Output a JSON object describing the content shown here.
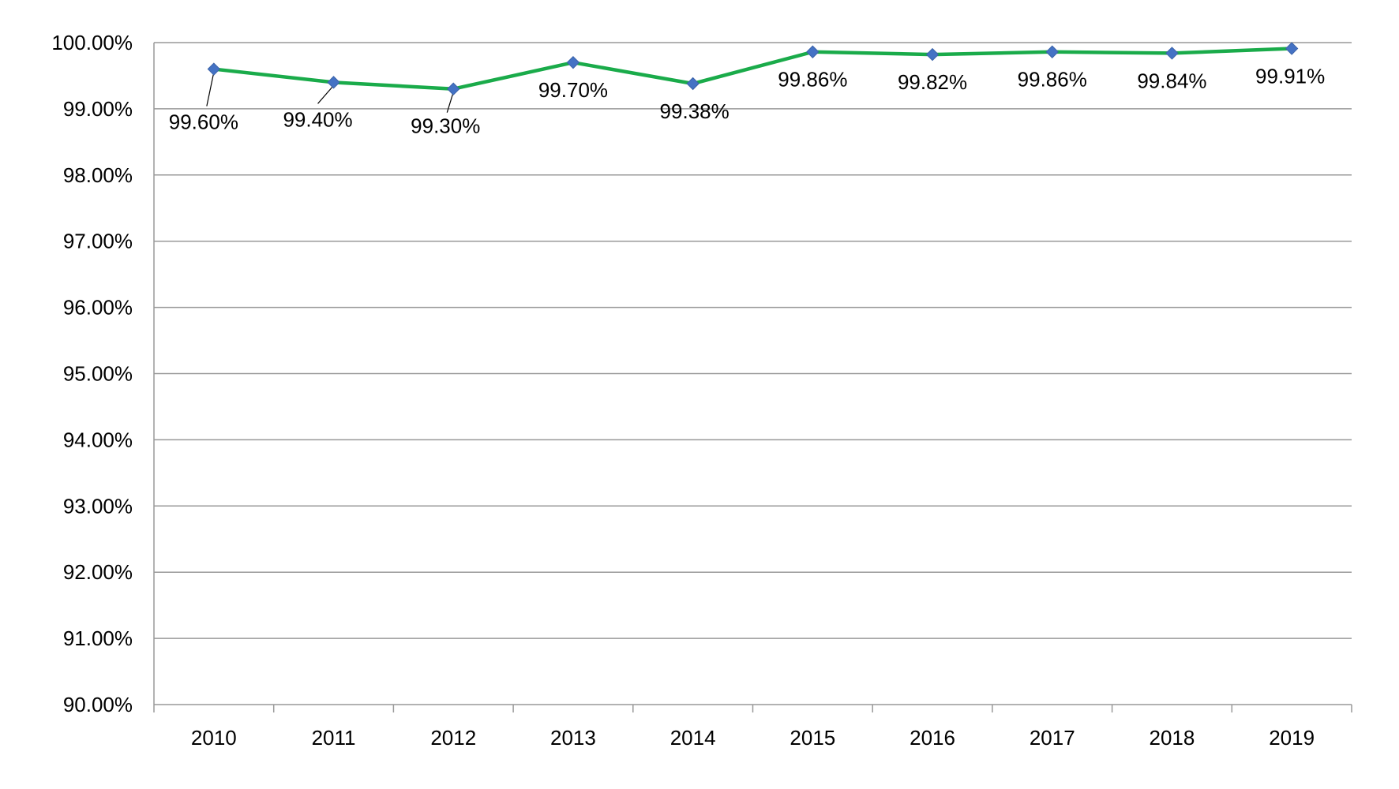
{
  "chart_data": {
    "type": "line",
    "title": "",
    "xlabel": "",
    "ylabel": "",
    "categories": [
      "2010",
      "2011",
      "2012",
      "2013",
      "2014",
      "2015",
      "2016",
      "2017",
      "2018",
      "2019"
    ],
    "series": [
      {
        "values": [
          99.6,
          99.4,
          99.3,
          99.7,
          99.38,
          99.86,
          99.82,
          99.86,
          99.84,
          99.91
        ],
        "labels": [
          "99.60%",
          "99.40%",
          "99.30%",
          "99.70%",
          "99.38%",
          "99.86%",
          "99.82%",
          "99.86%",
          "99.84%",
          "99.91%"
        ],
        "line_color": "#1aab4a",
        "marker_color": "#4472c4",
        "marker": "diamond"
      }
    ],
    "ylim": [
      90,
      100
    ],
    "y_ticks": [
      "90.00%",
      "91.00%",
      "92.00%",
      "93.00%",
      "94.00%",
      "95.00%",
      "96.00%",
      "97.00%",
      "98.00%",
      "99.00%",
      "100.00%"
    ],
    "grid": true,
    "grid_color": "#999999",
    "legend": "none"
  }
}
